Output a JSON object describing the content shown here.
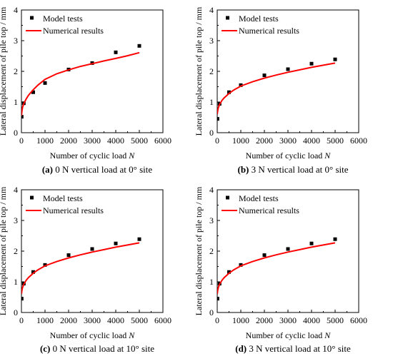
{
  "chart_data": [
    {
      "type": "scatter",
      "caption_letter": "(a)",
      "caption_text": " 0 N vertical load at 0° site",
      "xlabel": "Number of cyclic load ",
      "xlabel_var": "N",
      "ylabel": "Lateral displacement of pile top / mm",
      "xlim": [
        0,
        6000
      ],
      "ylim": [
        0,
        4
      ],
      "xticks": [
        "0",
        "1000",
        "2000",
        "3000",
        "4000",
        "5000",
        "6000"
      ],
      "yticks": [
        "0",
        "1",
        "2",
        "3",
        "4"
      ],
      "legend": {
        "position": "top-left",
        "items": [
          "Model tests",
          "Numerical results"
        ]
      },
      "series": [
        {
          "name": "Model tests",
          "kind": "scatter",
          "color": "#000000",
          "x": [
            10,
            100,
            500,
            1000,
            2000,
            3000,
            4000,
            5000
          ],
          "y": [
            0.52,
            0.96,
            1.32,
            1.62,
            2.06,
            2.27,
            2.62,
            2.83
          ]
        },
        {
          "name": "Numerical results",
          "kind": "line",
          "color": "#ff0000",
          "x": [
            1,
            20,
            50,
            100,
            200,
            300,
            500,
            700,
            1000,
            1500,
            2000,
            2500,
            3000,
            3500,
            4000,
            4500,
            5000
          ],
          "y": [
            0.55,
            0.7,
            0.83,
            0.95,
            1.1,
            1.22,
            1.4,
            1.55,
            1.74,
            1.92,
            2.05,
            2.16,
            2.25,
            2.34,
            2.42,
            2.51,
            2.61
          ]
        }
      ]
    },
    {
      "type": "scatter",
      "caption_letter": "(b)",
      "caption_text": " 3 N vertical load at 0° site",
      "xlabel": "Number of cyclic load ",
      "xlabel_var": "N",
      "ylabel": "Lateral displacement of pile top / mm",
      "xlim": [
        0,
        6000
      ],
      "ylim": [
        0,
        4
      ],
      "xticks": [
        "0",
        "1000",
        "2000",
        "3000",
        "4000",
        "5000",
        "6000"
      ],
      "yticks": [
        "0",
        "1",
        "2",
        "3",
        "4"
      ],
      "legend": {
        "position": "top-left",
        "items": [
          "Model tests",
          "Numerical results"
        ]
      },
      "series": [
        {
          "name": "Model tests",
          "kind": "scatter",
          "color": "#000000",
          "x": [
            10,
            100,
            500,
            1000,
            2000,
            3000,
            4000,
            5000
          ],
          "y": [
            0.45,
            0.94,
            1.32,
            1.55,
            1.87,
            2.07,
            2.25,
            2.39
          ]
        },
        {
          "name": "Numerical results",
          "kind": "line",
          "color": "#ff0000",
          "x": [
            1,
            20,
            50,
            100,
            200,
            300,
            500,
            700,
            1000,
            1500,
            2000,
            2500,
            3000,
            3500,
            4000,
            4500,
            5000
          ],
          "y": [
            0.6,
            0.72,
            0.82,
            0.92,
            1.05,
            1.14,
            1.28,
            1.39,
            1.52,
            1.66,
            1.78,
            1.88,
            1.97,
            2.05,
            2.13,
            2.2,
            2.27
          ]
        }
      ]
    },
    {
      "type": "scatter",
      "caption_letter": "(c)",
      "caption_text": " 0 N vertical load at 10° site",
      "xlabel": "Number of cyclic load ",
      "xlabel_var": "N",
      "ylabel": "Lateral displacement of pile top / mm",
      "xlim": [
        0,
        6000
      ],
      "ylim": [
        0,
        4
      ],
      "xticks": [
        "0",
        "1000",
        "2000",
        "3000",
        "4000",
        "5000",
        "6000"
      ],
      "yticks": [
        "0",
        "1",
        "2",
        "3",
        "4"
      ],
      "legend": {
        "position": "top-left",
        "items": [
          "Model tests",
          "Numerical results"
        ]
      },
      "series": [
        {
          "name": "Model tests",
          "kind": "scatter",
          "color": "#000000",
          "x": [
            10,
            100,
            500,
            1000,
            2000,
            3000,
            4000,
            5000
          ],
          "y": [
            0.45,
            0.94,
            1.32,
            1.55,
            1.87,
            2.07,
            2.25,
            2.39
          ]
        },
        {
          "name": "Numerical results",
          "kind": "line",
          "color": "#ff0000",
          "x": [
            1,
            20,
            50,
            100,
            200,
            300,
            500,
            700,
            1000,
            1500,
            2000,
            2500,
            3000,
            3500,
            4000,
            4500,
            5000
          ],
          "y": [
            0.6,
            0.72,
            0.82,
            0.92,
            1.05,
            1.14,
            1.28,
            1.39,
            1.52,
            1.66,
            1.78,
            1.88,
            1.97,
            2.05,
            2.13,
            2.2,
            2.27
          ]
        }
      ]
    },
    {
      "type": "scatter",
      "caption_letter": "(d)",
      "caption_text": " 3 N vertical load at 10° site",
      "xlabel": "Number of cyclic load ",
      "xlabel_var": "N",
      "ylabel": "Lateral displacement of pile top / mm",
      "xlim": [
        0,
        6000
      ],
      "ylim": [
        0,
        4
      ],
      "xticks": [
        "0",
        "1000",
        "2000",
        "3000",
        "4000",
        "5000",
        "6000"
      ],
      "yticks": [
        "0",
        "1",
        "2",
        "3",
        "4"
      ],
      "legend": {
        "position": "top-left",
        "items": [
          "Model tests",
          "Numerical results"
        ]
      },
      "series": [
        {
          "name": "Model tests",
          "kind": "scatter",
          "color": "#000000",
          "x": [
            10,
            100,
            500,
            1000,
            2000,
            3000,
            4000,
            5000
          ],
          "y": [
            0.45,
            0.94,
            1.32,
            1.55,
            1.87,
            2.07,
            2.25,
            2.39
          ]
        },
        {
          "name": "Numerical results",
          "kind": "line",
          "color": "#ff0000",
          "x": [
            1,
            20,
            50,
            100,
            200,
            300,
            500,
            700,
            1000,
            1500,
            2000,
            2500,
            3000,
            3500,
            4000,
            4500,
            5000
          ],
          "y": [
            0.6,
            0.72,
            0.82,
            0.92,
            1.05,
            1.14,
            1.28,
            1.39,
            1.52,
            1.66,
            1.78,
            1.88,
            1.97,
            2.05,
            2.13,
            2.2,
            2.27
          ]
        }
      ]
    }
  ]
}
